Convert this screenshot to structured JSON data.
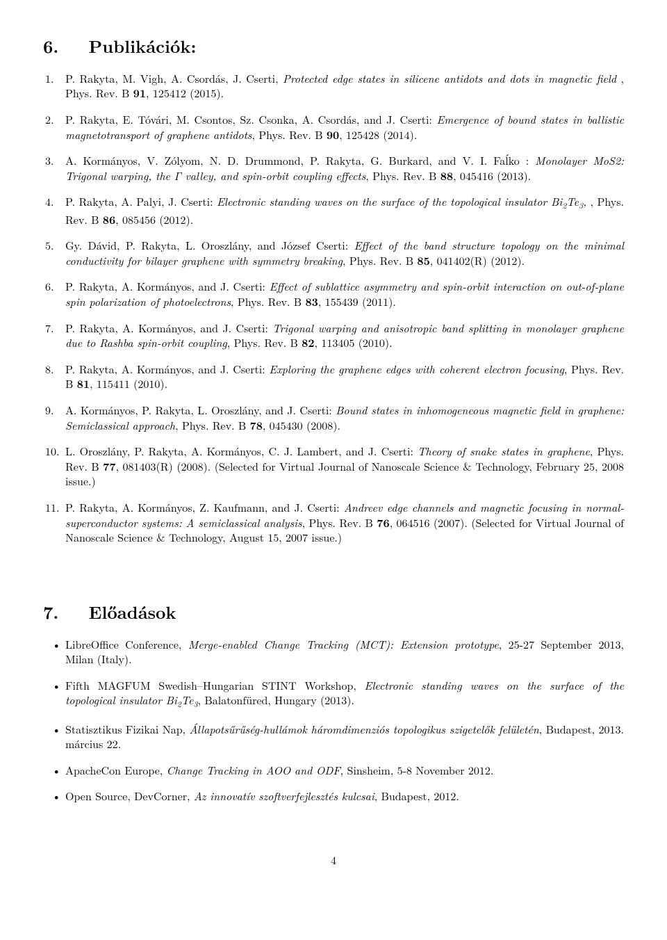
{
  "sections": {
    "publications": {
      "number": "6.",
      "title": "Publikációk:",
      "items": [
        {
          "num": "1.",
          "authors": "P. Rakyta, M. Vigh, A. Csordás, J. Cserti,",
          "title": "Protected edge states in silicene antidots and dots in magnetic field",
          "tail": " , Phys. Rev. B ",
          "vol": "91",
          "ref": ", 125412 (2015)."
        },
        {
          "num": "2.",
          "authors": "P. Rakyta, E. Tóvári, M. Csontos, Sz. Csonka, A. Csordás, and J. Cserti: ",
          "title": "Emergence of bound states in ballistic magnetotransport of graphene antidots",
          "tail": ", Phys. Rev. B ",
          "vol": "90",
          "ref": ", 125428 (2014)."
        },
        {
          "num": "3.",
          "authors": "A. Kormányos, V. Zólyom, N. D. Drummond, P. Rakyta, G. Burkard, and V. I. Faĺko : ",
          "title": "Monolayer MoS2: Trigonal warping, the Γ valley, and spin-orbit coupling effects",
          "tail": ", Phys. Rev. B ",
          "vol": "88",
          "ref": ", 045416 (2013)."
        },
        {
          "num": "4.",
          "authors": "P. Rakyta, A. Palyi, J. Cserti: ",
          "title": "Electronic standing waves on the surface of the topological insulator Bi₂Te₃,",
          "tail": " , Phys. Rev. B ",
          "vol": "86",
          "ref": ", 085456 (2012)."
        },
        {
          "num": "5.",
          "authors": "Gy. Dávid, P. Rakyta, L. Oroszlány, and József Cserti: ",
          "title": "Effect of the band structure topology on the minimal conductivity for bilayer graphene with symmetry breaking",
          "tail": ", Phys. Rev. B ",
          "vol": "85",
          "ref": ", 041402(R) (2012)."
        },
        {
          "num": "6.",
          "authors": "P. Rakyta, A. Kormányos, and J. Cserti: ",
          "title": "Effect of sublattice asymmetry and spin-orbit interaction on out-of-plane spin polarization of photoelectrons",
          "tail": ", Phys. Rev. B ",
          "vol": "83",
          "ref": ", 155439 (2011)."
        },
        {
          "num": "7.",
          "authors": "P. Rakyta, A. Kormányos, and J. Cserti: ",
          "title": "Trigonal warping and anisotropic band splitting in monolayer graphene due to Rashba spin-orbit coupling",
          "tail": ", Phys. Rev. B ",
          "vol": "82",
          "ref": ", 113405 (2010)."
        },
        {
          "num": "8.",
          "authors": "P. Rakyta, A. Kormányos, and J. Cserti: ",
          "title": "Exploring the graphene edges with coherent electron focusing",
          "tail": ", Phys. Rev. B ",
          "vol": "81",
          "ref": ", 115411 (2010)."
        },
        {
          "num": "9.",
          "authors": "A. Kormányos, P. Rakyta, L. Oroszlány, and J. Cserti: ",
          "title": "Bound states in inhomogeneous magnetic field in graphene: Semiclassical approach",
          "tail": ", Phys. Rev. B ",
          "vol": "78",
          "ref": ", 045430 (2008)."
        },
        {
          "num": "10.",
          "authors": "L. Oroszlány, P. Rakyta, A. Kormányos, C. J. Lambert, and J. Cserti: ",
          "title": "Theory of snake states in graphene",
          "tail": ", Phys. Rev. B ",
          "vol": "77",
          "ref": ", 081403(R) (2008). (Selected for Virtual Journal of Nanoscale Science & Technology, February 25, 2008 issue.)"
        },
        {
          "num": "11.",
          "authors": "P. Rakyta, A. Kormányos, Z. Kaufmann, and J. Cserti: ",
          "title": "Andreev edge channels and magnetic focusing in normal-superconductor systems: A semiclassical analysis",
          "tail": ", Phys. Rev. B ",
          "vol": "76",
          "ref": ", 064516 (2007). (Selected for Virtual Journal of Nanoscale Science & Technology, August 15, 2007 issue.)"
        }
      ]
    },
    "talks": {
      "number": "7.",
      "title": "Előadások",
      "items": [
        {
          "pre": "LibreOffice Conference, ",
          "title": "Merge-enabled Change Tracking (MCT): Extension prototype",
          "post": ", 25-27 September 2013, Milan (Italy)."
        },
        {
          "pre": "Fifth MAGFUM Swedish–Hungarian STINT Workshop, ",
          "title": "Electronic standing waves on the surface of the topological insulator Bi₂Te₃",
          "post": ", Balatonfüred, Hungary (2013)."
        },
        {
          "pre": "Statisztikus Fizikai Nap, ",
          "title": "Állapotsűrűség-hullámok háromdimenziós topologikus szigetelők felületén",
          "post": ", Budapest, 2013. március 22."
        },
        {
          "pre": "ApacheCon Europe, ",
          "title": "Change Tracking in AOO and ODF",
          "post": ", Sinsheim, 5-8 November 2012."
        },
        {
          "pre": "Open Source, DevCorner, ",
          "title": "Az innovatív szoftverfejlesztés kulcsai",
          "post": ", Budapest, 2012."
        }
      ]
    }
  },
  "page_number": "4",
  "colors": {
    "text": "#000000",
    "background": "#ffffff"
  },
  "typography": {
    "body_fontsize_pt": 12,
    "heading_fontsize_pt": 18,
    "font_family": "Computer Modern / Latin Modern (serif)"
  }
}
